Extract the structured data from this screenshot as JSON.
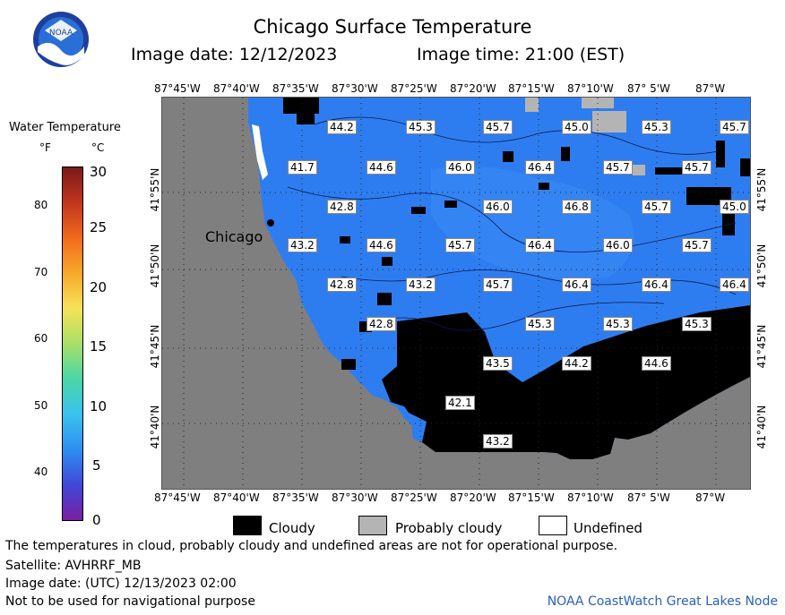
{
  "header": {
    "logo_text": "NOAA",
    "title": "Chicago Surface Temperature",
    "image_date": "Image date: 12/12/2023",
    "image_time": "Image time: 21:00 (EST)"
  },
  "colorbar": {
    "title": "Water Temperature",
    "unit_f": "°F",
    "unit_c": "°C",
    "f_ticks": [
      "80",
      "70",
      "60",
      "50",
      "40"
    ],
    "c_ticks": [
      "30",
      "25",
      "20",
      "15",
      "10",
      "5",
      "0"
    ]
  },
  "map": {
    "city_label": "Chicago",
    "top_lon_labels": [
      "87°45'W",
      "87°40'W",
      "87°35'W",
      "87°30'W",
      "87°25'W",
      "87°20'W",
      "87°15'W",
      "87°10'W",
      "87° 5'W",
      "87°W"
    ],
    "bottom_lon_labels": [
      "87°45'W",
      "87°40'W",
      "87°35'W",
      "87°30'W",
      "87°25'W",
      "87°20'W",
      "87°15'W",
      "87°10'W",
      "87° 5'W",
      "87°W"
    ],
    "lat_labels": [
      "41°55'N",
      "41°50'N",
      "41°45'N",
      "41°40'N"
    ],
    "temperature_labels": [
      "44.2",
      "45.3",
      "45.7",
      "45.0",
      "45.3",
      "45.7",
      "41.7",
      "44.6",
      "46.0",
      "46.4",
      "45.7",
      "45.7",
      "42.8",
      "46.0",
      "46.8",
      "45.7",
      "45.0",
      "43.2",
      "44.6",
      "45.7",
      "46.4",
      "46.0",
      "45.7",
      "42.8",
      "43.2",
      "45.7",
      "46.4",
      "46.4",
      "46.4",
      "42.8",
      "45.3",
      "45.3",
      "45.3",
      "43.5",
      "44.2",
      "44.6",
      "42.1",
      "43.2"
    ],
    "colors": {
      "land": "#7f7f7f",
      "water": "#2e7df0",
      "cloud": "#000000",
      "probably_cloudy": "#b4b4b4"
    }
  },
  "legend": {
    "cloudy": "Cloudy",
    "probably_cloudy": "Probably cloudy",
    "undefined": "Undefined"
  },
  "footer": {
    "note": "The temperatures in cloud, probably cloudy and undefined areas are not for operational purpose.",
    "satellite": "Satellite: AVHRRF_MB",
    "utc_date": "Image date: (UTC) 12/13/2023  02:00",
    "nav_warning": "Not to be used for navigational purpose",
    "credit": "NOAA CoastWatch Great Lakes Node"
  }
}
